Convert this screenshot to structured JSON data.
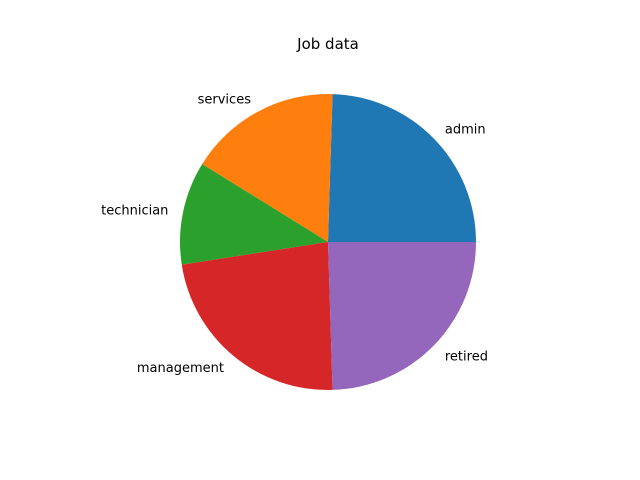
{
  "chart_data": {
    "type": "pie",
    "title": "Job data",
    "categories": [
      "admin",
      "services",
      "technician",
      "management",
      "retired"
    ],
    "values": [
      25,
      17,
      11.5,
      23.5,
      25
    ],
    "colors": [
      "#1f77b4",
      "#ff7f0e",
      "#2ca02c",
      "#d62728",
      "#9467bd"
    ],
    "start_angle_deg": 0,
    "direction": "counterclockwise"
  }
}
